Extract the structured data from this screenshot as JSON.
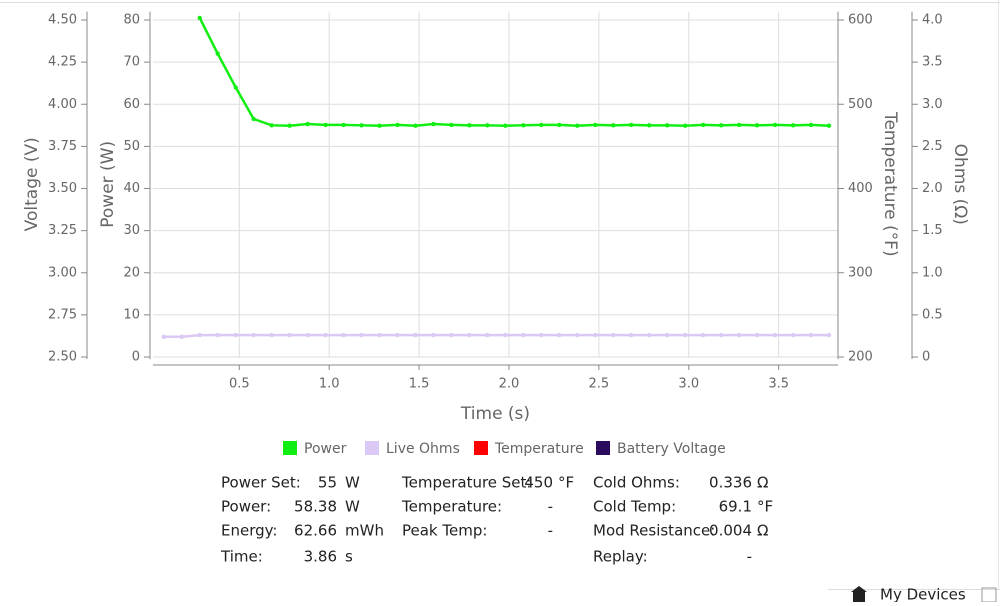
{
  "chart_data": {
    "type": "line",
    "x": [
      0.08,
      0.18,
      0.28,
      0.38,
      0.48,
      0.58,
      0.68,
      0.78,
      0.88,
      0.98,
      1.08,
      1.18,
      1.28,
      1.38,
      1.48,
      1.58,
      1.68,
      1.78,
      1.88,
      1.98,
      2.08,
      2.18,
      2.28,
      2.38,
      2.48,
      2.58,
      2.68,
      2.78,
      2.88,
      2.98,
      3.08,
      3.18,
      3.28,
      3.38,
      3.48,
      3.58,
      3.68,
      3.78
    ],
    "xlim": [
      0.02,
      3.83
    ],
    "xticks": [
      0.5,
      {
        "value": 1,
        "label": "1.0"
      },
      1.5,
      {
        "value": 2,
        "label": "2.0"
      },
      2.5,
      {
        "value": 3,
        "label": "3.0"
      },
      3.5
    ],
    "xlabel": "Time (s)",
    "ylabel": "Power (W)",
    "ylim": [
      0,
      82
    ],
    "yticks": [
      0,
      10,
      20,
      30,
      40,
      50,
      60,
      70,
      80
    ],
    "y2label": "Temperature (°F)",
    "y2lim": [
      200,
      610
    ],
    "y2ticks": [
      200,
      300,
      400,
      500,
      600
    ],
    "y3label": "Voltage (V)",
    "y3lim": [
      2.5,
      4.55
    ],
    "y3ticks": [
      {
        "value": 2.5,
        "label": "2.50"
      },
      2.75,
      {
        "value": 3,
        "label": "3.00"
      },
      3.25,
      {
        "value": 3.5,
        "label": "3.50"
      },
      3.75,
      {
        "value": 4,
        "label": "4.00"
      },
      4.25,
      {
        "value": 4.5,
        "label": "4.50"
      }
    ],
    "y4label": "Ohms (Ω)",
    "y4lim": [
      0,
      4.1
    ],
    "y4ticks": [
      0,
      0.5,
      {
        "value": 1,
        "label": "1.0"
      },
      1.5,
      {
        "value": 2,
        "label": "2.0"
      },
      2.5,
      {
        "value": 3,
        "label": "3.0"
      },
      3.5,
      {
        "value": 4,
        "label": "4.0"
      }
    ],
    "grid": true,
    "series": [
      {
        "name": "Power",
        "color": "#11ee11",
        "axis": "y",
        "values": [
          null,
          null,
          80.5,
          72,
          64,
          56.5,
          55,
          54.9,
          55.3,
          55.1,
          55.1,
          55,
          54.9,
          55.1,
          54.9,
          55.3,
          55.1,
          55,
          55,
          54.9,
          55,
          55.1,
          55.1,
          54.9,
          55.1,
          55,
          55.1,
          55,
          55,
          54.9,
          55.1,
          55,
          55.1,
          55,
          55.1,
          55,
          55.1,
          54.9
        ]
      },
      {
        "name": "Live Ohms",
        "color": "#dcc8f4",
        "axis": "y4",
        "values": [
          0.24,
          0.24,
          0.26,
          0.26,
          0.26,
          0.26,
          0.26,
          0.26,
          0.26,
          0.26,
          0.26,
          0.26,
          0.26,
          0.26,
          0.26,
          0.26,
          0.26,
          0.26,
          0.26,
          0.26,
          0.26,
          0.26,
          0.26,
          0.26,
          0.26,
          0.26,
          0.26,
          0.26,
          0.26,
          0.26,
          0.26,
          0.26,
          0.26,
          0.26,
          0.26,
          0.26,
          0.26,
          0.26
        ]
      },
      {
        "name": "Temperature",
        "color": "#ff0000",
        "axis": "y2",
        "values": [
          null,
          null,
          null,
          null,
          null,
          null,
          null,
          null,
          null,
          null,
          null,
          null,
          null,
          null,
          null,
          null,
          null,
          null,
          null,
          null,
          null,
          null,
          null,
          null,
          null,
          null,
          null,
          null,
          null,
          null,
          null,
          null,
          null,
          null,
          null,
          null,
          null,
          null
        ]
      },
      {
        "name": "Battery Voltage",
        "color": "#2c0b5e",
        "axis": "y3",
        "values": [
          null,
          null,
          null,
          null,
          null,
          null,
          null,
          null,
          null,
          null,
          null,
          null,
          null,
          null,
          null,
          null,
          null,
          null,
          null,
          null,
          null,
          null,
          null,
          null,
          null,
          null,
          null,
          null,
          null,
          null,
          null,
          null,
          null,
          null,
          null,
          null,
          null,
          null
        ]
      }
    ]
  },
  "stats": [
    [
      {
        "label": "Power Set:",
        "value": 55,
        "unit": "W"
      },
      {
        "label": "Temperature Set:",
        "value": 450,
        "unit": "°F"
      },
      {
        "label": "Cold Ohms:",
        "value": 0.336,
        "unit": "Ω"
      }
    ],
    [
      {
        "label": "Power:",
        "value": 58.38,
        "unit": "W"
      },
      {
        "label": "Temperature:",
        "value": "-"
      },
      {
        "label": "Cold Temp:",
        "value": 69.1,
        "unit": "°F"
      }
    ],
    [
      {
        "label": "Energy:",
        "value": 62.66,
        "unit": "mWh"
      },
      {
        "label": "Peak Temp:",
        "value": "-"
      },
      {
        "label": "Mod Resistance:",
        "value": 0.004,
        "unit": "Ω"
      }
    ],
    [
      {
        "label": "Time:",
        "value": 3.86,
        "unit": "s"
      },
      null,
      {
        "label": "Replay:",
        "value": "-"
      }
    ]
  ],
  "footer": {
    "devices": "My Devices"
  }
}
